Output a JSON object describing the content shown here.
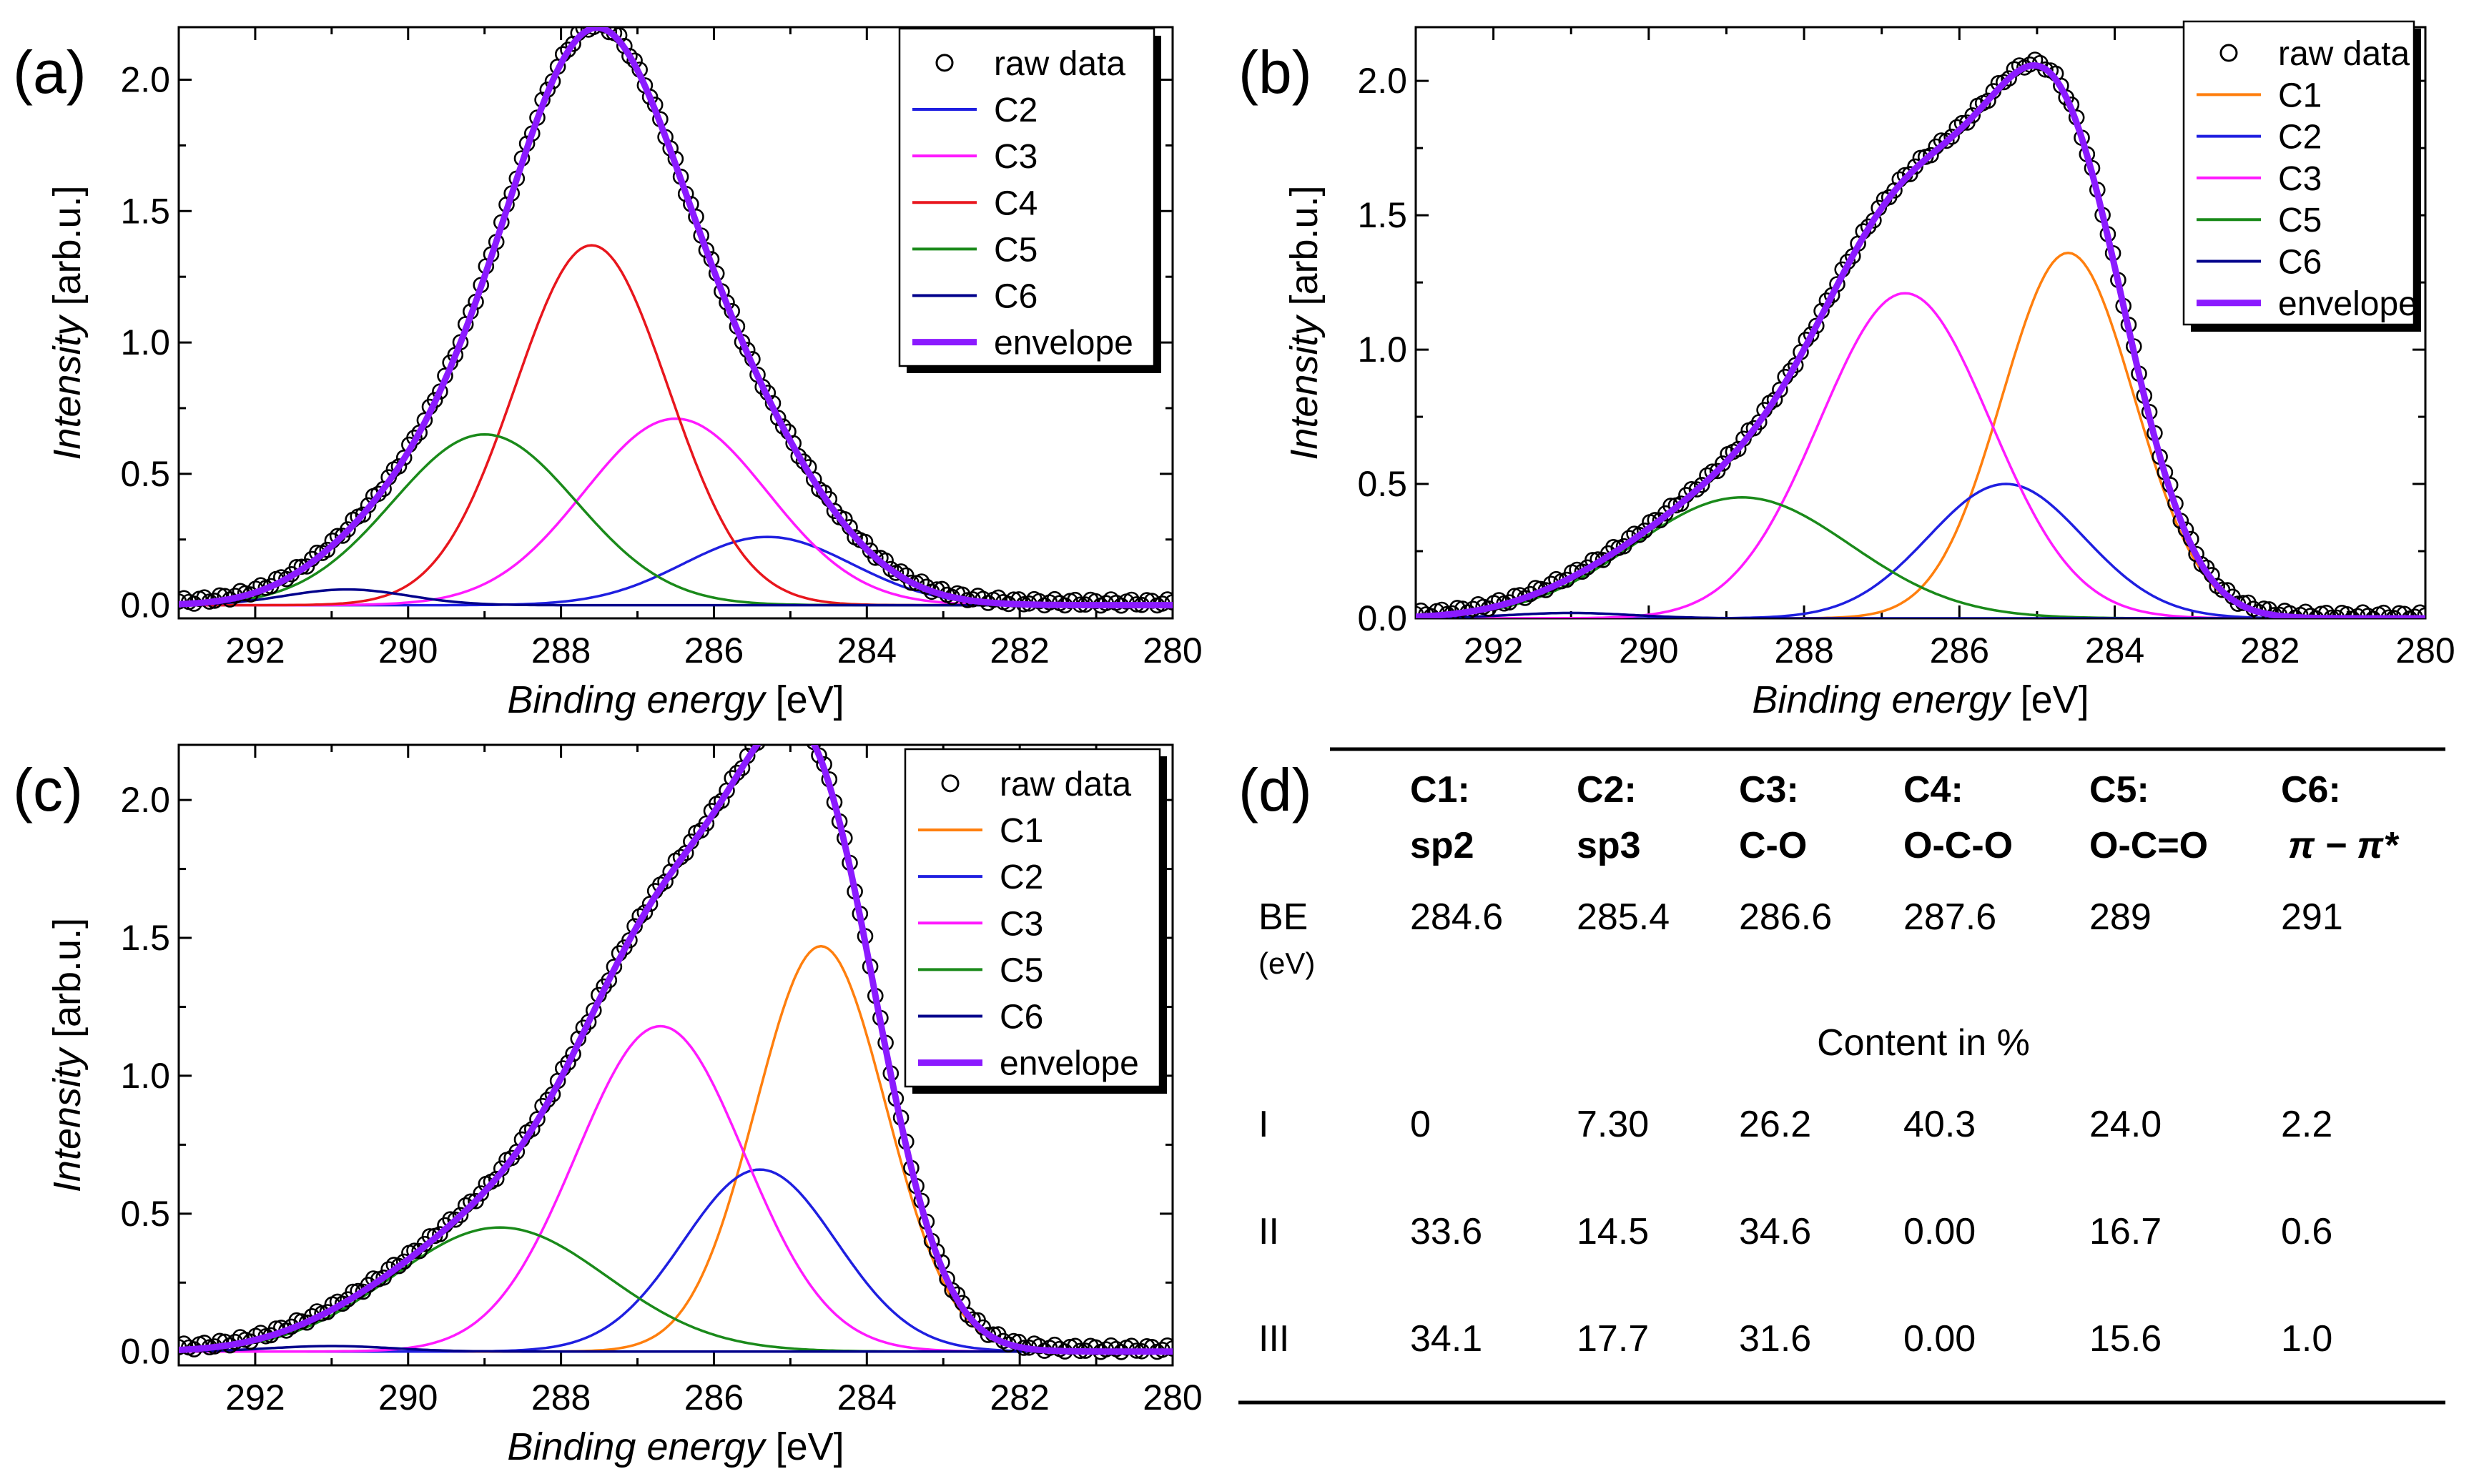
{
  "chart_data": [
    {
      "panel": "(a)",
      "type": "line",
      "xlabel": "Binding energy",
      "xunit": "[eV]",
      "ylabel": "Intensity",
      "yunit": "[arb.u.]",
      "xlim": [
        293,
        280
      ],
      "ylim": [
        -0.05,
        2.2
      ],
      "xticks": [
        292,
        290,
        288,
        286,
        284,
        282,
        280
      ],
      "yticks": [
        0.0,
        0.5,
        1.0,
        1.5,
        2.0
      ],
      "xtick_labels": [
        "292",
        "290",
        "288",
        "286",
        "284",
        "282",
        "280"
      ],
      "ytick_labels": [
        "0.0",
        "0.5",
        "1.0",
        "1.5",
        "2.0"
      ],
      "legend": [
        "raw data",
        "C2",
        "C3",
        "C4",
        "C5",
        "C6",
        "envelope"
      ],
      "components": [
        {
          "name": "C2",
          "center": 285.3,
          "height": 0.26,
          "width": 1.1,
          "color": "#1f1fe0"
        },
        {
          "name": "C3",
          "center": 286.5,
          "height": 0.71,
          "width": 1.2,
          "color": "#ff1aff"
        },
        {
          "name": "C4",
          "center": 287.6,
          "height": 1.37,
          "width": 1.0,
          "color": "#e8161d"
        },
        {
          "name": "C5",
          "center": 289.0,
          "height": 0.65,
          "width": 1.2,
          "color": "#1a8a1a"
        },
        {
          "name": "C6",
          "center": 290.8,
          "height": 0.06,
          "width": 0.8,
          "color": "#00008b"
        }
      ]
    },
    {
      "panel": "(b)",
      "type": "line",
      "xlabel": "Binding energy",
      "xunit": "[eV]",
      "ylabel": "Intensity",
      "yunit": "[arb.u.]",
      "xlim": [
        293,
        280
      ],
      "ylim": [
        0.0,
        2.2
      ],
      "xticks": [
        292,
        290,
        288,
        286,
        284,
        282,
        280
      ],
      "yticks": [
        0.0,
        0.5,
        1.0,
        1.5,
        2.0
      ],
      "xtick_labels": [
        "292",
        "290",
        "288",
        "286",
        "284",
        "282",
        "280"
      ],
      "ytick_labels": [
        "0.0",
        "0.5",
        "1.0",
        "1.5",
        "2.0"
      ],
      "legend": [
        "raw data",
        "C1",
        "C2",
        "C3",
        "C5",
        "C6",
        "envelope"
      ],
      "components": [
        {
          "name": "C1",
          "center": 284.6,
          "height": 1.36,
          "width": 0.85,
          "color": "#ff7f0e"
        },
        {
          "name": "C2",
          "center": 285.4,
          "height": 0.5,
          "width": 1.0,
          "color": "#1f1fe0"
        },
        {
          "name": "C3",
          "center": 286.7,
          "height": 1.21,
          "width": 1.1,
          "color": "#ff1aff"
        },
        {
          "name": "C5",
          "center": 288.8,
          "height": 0.45,
          "width": 1.4,
          "color": "#1a8a1a"
        },
        {
          "name": "C6",
          "center": 291.0,
          "height": 0.02,
          "width": 0.8,
          "color": "#00008b"
        }
      ]
    },
    {
      "panel": "(c)",
      "type": "line",
      "xlabel": "Binding energy",
      "xunit": "[eV]",
      "ylabel": "Intensity",
      "yunit": "[arb.u.]",
      "xlim": [
        293,
        280
      ],
      "ylim": [
        -0.05,
        2.2
      ],
      "xticks": [
        292,
        290,
        288,
        286,
        284,
        282,
        280
      ],
      "yticks": [
        0.0,
        0.5,
        1.0,
        1.5,
        2.0
      ],
      "xtick_labels": [
        "292",
        "290",
        "288",
        "286",
        "284",
        "282",
        "280"
      ],
      "ytick_labels": [
        "0.0",
        "0.5",
        "1.0",
        "1.5",
        "2.0"
      ],
      "legend": [
        "raw data",
        "C1",
        "C2",
        "C3",
        "C5",
        "C6",
        "envelope"
      ],
      "components": [
        {
          "name": "C1",
          "center": 284.6,
          "height": 1.47,
          "width": 0.85,
          "color": "#ff7f0e"
        },
        {
          "name": "C2",
          "center": 285.4,
          "height": 0.66,
          "width": 1.0,
          "color": "#1f1fe0"
        },
        {
          "name": "C3",
          "center": 286.7,
          "height": 1.18,
          "width": 1.1,
          "color": "#ff1aff"
        },
        {
          "name": "C5",
          "center": 288.8,
          "height": 0.45,
          "width": 1.4,
          "color": "#1a8a1a"
        },
        {
          "name": "C6",
          "center": 291.0,
          "height": 0.02,
          "width": 0.8,
          "color": "#00008b"
        }
      ]
    },
    {
      "panel": "(d)",
      "type": "table",
      "columns": [
        {
          "line1": "C1:",
          "line2": "sp2"
        },
        {
          "line1": "C2:",
          "line2": "sp3"
        },
        {
          "line1": "C3:",
          "line2": "C-O"
        },
        {
          "line1": "C4:",
          "line2": "O-C-O"
        },
        {
          "line1": "C5:",
          "line2": "O-C=O"
        },
        {
          "line1": "C6:",
          "line2": "π − π*"
        }
      ],
      "be_label": "BE",
      "be_unit": "(eV)",
      "be_values": [
        "284.6",
        "285.4",
        "286.6",
        "287.6",
        "289",
        "291"
      ],
      "section_label": "Content in %",
      "rows": [
        {
          "label": "I",
          "values": [
            "0",
            "7.30",
            "26.2",
            "40.3",
            "24.0",
            "2.2"
          ]
        },
        {
          "label": "II",
          "values": [
            "33.6",
            "14.5",
            "34.6",
            "0.00",
            "16.7",
            "0.6"
          ]
        },
        {
          "label": "III",
          "values": [
            "34.1",
            "17.7",
            "31.6",
            "0.00",
            "15.6",
            "1.0"
          ]
        }
      ]
    }
  ],
  "colors": {
    "raw": "#000000",
    "envelope": "#8b1aff"
  }
}
